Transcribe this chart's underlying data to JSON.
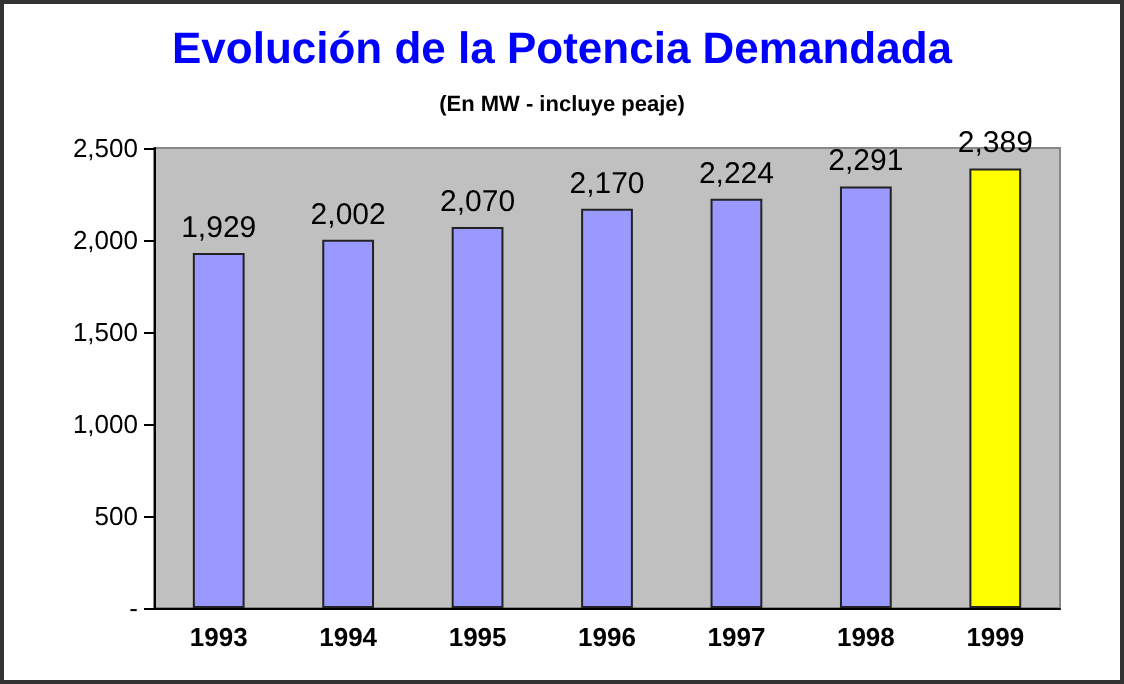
{
  "chart_data": {
    "type": "bar",
    "title": "Evolución de la Potencia Demandada",
    "subtitle": "(En MW - incluye peaje)",
    "categories": [
      "1993",
      "1994",
      "1995",
      "1996",
      "1997",
      "1998",
      "1999"
    ],
    "values": [
      1929,
      2002,
      2070,
      2170,
      2224,
      2291,
      2389
    ],
    "colors": [
      "#9999ff",
      "#9999ff",
      "#9999ff",
      "#9999ff",
      "#9999ff",
      "#9999ff",
      "#ffff00"
    ],
    "value_labels": [
      "1,929",
      "2,002",
      "2,070",
      "2,170",
      "2,224",
      "2,291",
      "2,389"
    ],
    "ylim": [
      0,
      2500
    ],
    "yticks": [
      {
        "value": 0,
        "label": "-"
      },
      500,
      {
        "value": 1000,
        "label": "1,000"
      },
      {
        "value": 1500,
        "label": "1,500"
      },
      {
        "value": 2000,
        "label": "2,000"
      },
      {
        "value": 2500,
        "label": "2,500"
      }
    ],
    "grid": false
  }
}
